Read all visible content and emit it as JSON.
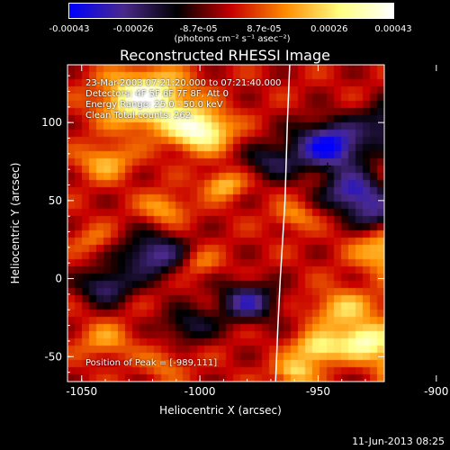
{
  "colorbar": {
    "tick_labels": [
      "-0.00043",
      "-0.00026",
      "-8.7e-05",
      "8.7e-05",
      "0.00026",
      "0.00043"
    ],
    "tick_values": [
      -0.00043,
      -0.00026,
      -8.7e-05,
      8.7e-05,
      0.00026,
      0.00043
    ],
    "units_label": "(photons cm⁻² s⁻¹ asec⁻²)"
  },
  "chart_data": {
    "type": "heatmap",
    "title": "Reconstructed RHESSI Image",
    "xlabel": "Heliocentric X (arcsec)",
    "ylabel": "Heliocentric Y (arcsec)",
    "xlim": [
      -1056,
      -922
    ],
    "ylim": [
      -66,
      137
    ],
    "xticks": [
      -1050,
      -1000,
      -950,
      -900
    ],
    "yticks": [
      -50,
      0,
      50,
      100
    ],
    "colormap": [
      "#0000ff",
      "#4b2a8c",
      "#000000",
      "#c80000",
      "#ff8c00",
      "#ffff80",
      "#ffffff"
    ],
    "color_range": [
      -0.00043,
      0.00043
    ],
    "limb_curve": {
      "label": "solar limb",
      "x": [
        -962,
        -963,
        -964,
        -966,
        -967,
        -968
      ],
      "y": [
        137,
        100,
        50,
        0,
        -30,
        -66
      ]
    },
    "peak": {
      "x": -989,
      "y": 111,
      "marker": "✛"
    },
    "intensity_sources": [
      {
        "x": -1023,
        "y": 115,
        "amp": 0.00041,
        "sigma": 13
      },
      {
        "x": -1000,
        "y": 95,
        "amp": 0.00039,
        "sigma": 9
      },
      {
        "x": -1040,
        "y": 75,
        "amp": 0.0002,
        "sigma": 8
      },
      {
        "x": -990,
        "y": 60,
        "amp": 0.00022,
        "sigma": 6
      },
      {
        "x": -1015,
        "y": 45,
        "amp": 0.00018,
        "sigma": 7
      },
      {
        "x": -960,
        "y": 40,
        "amp": 0.00015,
        "sigma": 6
      },
      {
        "x": -1045,
        "y": 25,
        "amp": 0.00012,
        "sigma": 6
      },
      {
        "x": -1000,
        "y": 10,
        "amp": 0.00014,
        "sigma": 6
      },
      {
        "x": -920,
        "y": 18,
        "amp": 0.00025,
        "sigma": 10
      },
      {
        "x": -905,
        "y": -15,
        "amp": 0.0004,
        "sigma": 9
      },
      {
        "x": -940,
        "y": -20,
        "amp": 0.00022,
        "sigma": 9
      },
      {
        "x": -930,
        "y": -40,
        "amp": 0.00035,
        "sigma": 8
      },
      {
        "x": -950,
        "y": -45,
        "amp": 0.0003,
        "sigma": 7
      },
      {
        "x": -912,
        "y": -55,
        "amp": 0.00036,
        "sigma": 8
      },
      {
        "x": -960,
        "y": -60,
        "amp": 0.00025,
        "sigma": 6
      },
      {
        "x": -1040,
        "y": -40,
        "amp": 0.00016,
        "sigma": 8
      },
      {
        "x": -1015,
        "y": -55,
        "amp": 0.00012,
        "sigma": 7
      },
      {
        "x": -945,
        "y": 85,
        "amp": -0.00042,
        "sigma": 11
      },
      {
        "x": -915,
        "y": 100,
        "amp": -0.0003,
        "sigma": 10
      },
      {
        "x": -935,
        "y": 55,
        "amp": -0.00034,
        "sigma": 9
      },
      {
        "x": -1020,
        "y": 15,
        "amp": -0.0003,
        "sigma": 10
      },
      {
        "x": -1040,
        "y": -5,
        "amp": -0.00026,
        "sigma": 8
      },
      {
        "x": -980,
        "y": -15,
        "amp": -0.0003,
        "sigma": 9
      },
      {
        "x": -1005,
        "y": -30,
        "amp": -0.0002,
        "sigma": 8
      },
      {
        "x": -925,
        "y": 40,
        "amp": -0.00022,
        "sigma": 8
      },
      {
        "x": -970,
        "y": 75,
        "amp": -0.0002,
        "sigma": 8
      }
    ]
  },
  "annotations": {
    "time_range": "23-Mar-2003 07:21:20.000 to 07:21:40.000",
    "detectors": "Detectors: 4F 5F 6F 7F 8F, Att 0",
    "energy_range": "Energy Range: 25.0 - 50.0 keV",
    "method": "Clean    Total counts: 262.",
    "peak_position": "Position of Peak = [-989,111]"
  },
  "footer": {
    "date": "11-Jun-2013 08:25"
  }
}
